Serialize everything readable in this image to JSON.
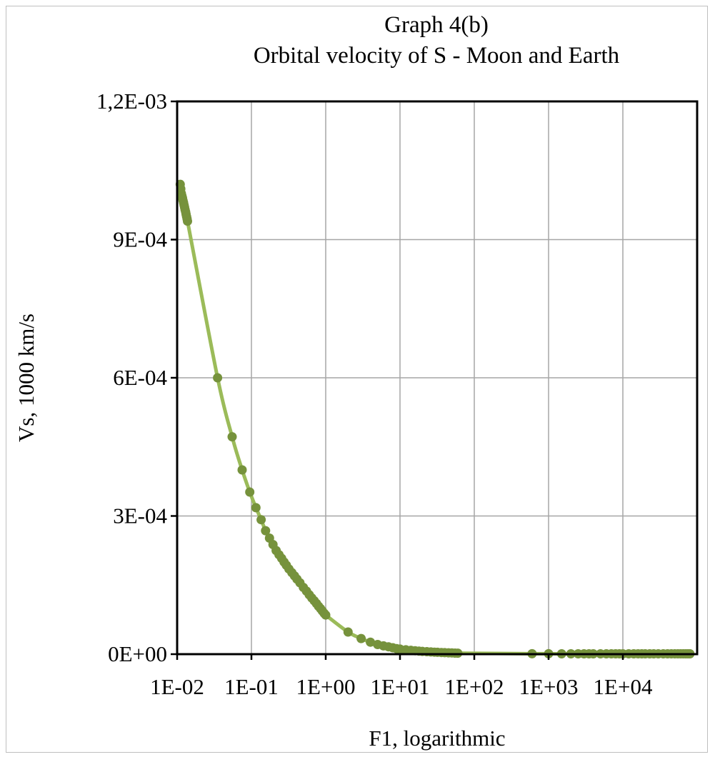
{
  "chart_data": {
    "type": "scatter",
    "title": "Graph 4(b)",
    "subtitle": "Orbital velocity of S - Moon and Earth",
    "xlabel": "F1, logarithmic",
    "ylabel": "Vs, 1000 km/s",
    "x_scale": "log",
    "xlim": [
      0.01,
      100000
    ],
    "ylim": [
      0,
      0.0012
    ],
    "x_ticks": [
      0.01,
      0.1,
      1,
      10,
      100,
      1000,
      10000
    ],
    "x_tick_labels": [
      "1E-02",
      "1E-01",
      "1E+00",
      "1E+01",
      "1E+02",
      "1E+03",
      "1E+04"
    ],
    "y_ticks": [
      0,
      0.0003,
      0.0006,
      0.0009,
      0.0012
    ],
    "y_tick_labels": [
      "0E+00",
      "3E-04",
      "6E-04",
      "9E-04",
      "1,2E-03"
    ],
    "grid": true,
    "legend": false,
    "colors": {
      "line": "#9bbb59",
      "marker": "#76923c",
      "axis": "#000000",
      "grid": "#a6a6a6"
    },
    "series": [
      {
        "points": [
          [
            0.011,
            0.00102
          ],
          [
            0.0112,
            0.00101
          ],
          [
            0.0114,
            0.001
          ],
          [
            0.0116,
            0.000995
          ],
          [
            0.0118,
            0.00099
          ],
          [
            0.012,
            0.000985
          ],
          [
            0.0122,
            0.00098
          ],
          [
            0.0124,
            0.000975
          ],
          [
            0.0126,
            0.00097
          ],
          [
            0.0128,
            0.000965
          ],
          [
            0.013,
            0.00096
          ],
          [
            0.0132,
            0.000955
          ],
          [
            0.0134,
            0.00095
          ],
          [
            0.0136,
            0.000945
          ],
          [
            0.0138,
            0.00094
          ],
          [
            0.035,
            0.0006
          ],
          [
            0.055,
            0.000472
          ],
          [
            0.075,
            0.0004
          ],
          [
            0.095,
            0.000352
          ],
          [
            0.115,
            0.000318
          ],
          [
            0.135,
            0.000292
          ],
          [
            0.155,
            0.000268
          ],
          [
            0.175,
            0.000252
          ],
          [
            0.195,
            0.000238
          ],
          [
            0.215,
            0.000225
          ],
          [
            0.235,
            0.000216
          ],
          [
            0.255,
            0.000208
          ],
          [
            0.275,
            0.0002
          ],
          [
            0.295,
            0.000193
          ],
          [
            0.32,
            0.000185
          ],
          [
            0.35,
            0.000177
          ],
          [
            0.38,
            0.00017
          ],
          [
            0.41,
            0.000163
          ],
          [
            0.45,
            0.000155
          ],
          [
            0.5,
            0.000145
          ],
          [
            0.55,
            0.000137
          ],
          [
            0.6,
            0.000129
          ],
          [
            0.65,
            0.000122
          ],
          [
            0.7,
            0.000116
          ],
          [
            0.75,
            0.00011
          ],
          [
            0.8,
            0.000104
          ],
          [
            0.85,
            9.9e-05
          ],
          [
            0.9,
            9.4e-05
          ],
          [
            0.95,
            8.9e-05
          ],
          [
            1.0,
            8.5e-05
          ],
          [
            2.0,
            4.8e-05
          ],
          [
            3.0,
            3.4e-05
          ],
          [
            4.0,
            2.6e-05
          ],
          [
            5.0,
            2.1e-05
          ],
          [
            6.0,
            1.8e-05
          ],
          [
            7.0,
            1.6e-05
          ],
          [
            8.0,
            1.4e-05
          ],
          [
            9.0,
            1.2e-05
          ],
          [
            10,
            1.1e-05
          ],
          [
            12,
            9.5e-06
          ],
          [
            14,
            8.3e-06
          ],
          [
            16,
            7.4e-06
          ],
          [
            18,
            6.7e-06
          ],
          [
            20,
            6.1e-06
          ],
          [
            23,
            5.4e-06
          ],
          [
            26,
            4.8e-06
          ],
          [
            29,
            4.4e-06
          ],
          [
            32,
            4e-06
          ],
          [
            36,
            3.6e-06
          ],
          [
            40,
            3.2e-06
          ],
          [
            45,
            2.9e-06
          ],
          [
            50,
            2.6e-06
          ],
          [
            55,
            2.4e-06
          ],
          [
            60,
            2.2e-06
          ],
          [
            600,
            1e-06
          ],
          [
            1000,
            1e-06
          ],
          [
            1500,
            8e-07
          ],
          [
            2000,
            8e-07
          ],
          [
            2500,
            8e-07
          ],
          [
            3000,
            8e-07
          ],
          [
            3500,
            8e-07
          ],
          [
            4000,
            8e-07
          ],
          [
            5000,
            8e-07
          ],
          [
            6000,
            8e-07
          ],
          [
            7000,
            8e-07
          ],
          [
            8000,
            8e-07
          ],
          [
            9000,
            8e-07
          ],
          [
            10000,
            8e-07
          ],
          [
            12000,
            8e-07
          ],
          [
            14000,
            8e-07
          ],
          [
            16000,
            8e-07
          ],
          [
            18000,
            8e-07
          ],
          [
            20000,
            8e-07
          ],
          [
            23000,
            8e-07
          ],
          [
            26000,
            8e-07
          ],
          [
            30000,
            8e-07
          ],
          [
            35000,
            8e-07
          ],
          [
            40000,
            8e-07
          ],
          [
            45000,
            8e-07
          ],
          [
            50000,
            8e-07
          ],
          [
            55000,
            8e-07
          ],
          [
            60000,
            8e-07
          ],
          [
            65000,
            8e-07
          ],
          [
            70000,
            8e-07
          ],
          [
            75000,
            8e-07
          ],
          [
            80000,
            8e-07
          ]
        ]
      }
    ]
  }
}
